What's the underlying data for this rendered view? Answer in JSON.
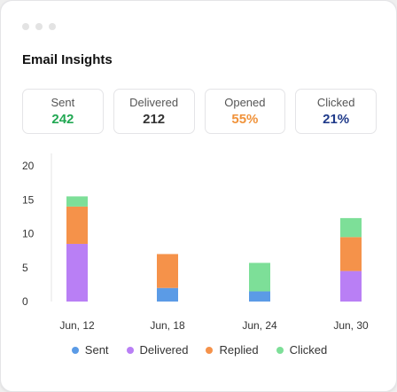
{
  "title": "Email Insights",
  "stats": [
    {
      "label": "Sent",
      "value": "242",
      "color": "#22a853"
    },
    {
      "label": "Delivered",
      "value": "212",
      "color": "#333333"
    },
    {
      "label": "Opened",
      "value": "55%",
      "color": "#f0923a"
    },
    {
      "label": "Clicked",
      "value": "21%",
      "color": "#1f3a8a"
    }
  ],
  "chart_data": {
    "type": "bar",
    "stacked": true,
    "categories": [
      "Jun, 12",
      "Jun, 18",
      "Jun, 24",
      "Jun, 30"
    ],
    "series": [
      {
        "name": "Sent",
        "color": "#5b9be6",
        "values": [
          0,
          2,
          1.5,
          0
        ]
      },
      {
        "name": "Delivered",
        "color": "#b97ff5",
        "values": [
          8.5,
          0,
          0,
          4.5
        ]
      },
      {
        "name": "Replied",
        "color": "#f5924a",
        "values": [
          5.5,
          5,
          0,
          5
        ]
      },
      {
        "name": "Clicked",
        "color": "#7ddf98",
        "values": [
          1.5,
          0,
          4.2,
          2.8
        ]
      }
    ],
    "ylim": [
      0,
      20
    ],
    "yticks": [
      "0",
      "5",
      "10",
      "15",
      "20"
    ],
    "legend_position": "bottom"
  }
}
